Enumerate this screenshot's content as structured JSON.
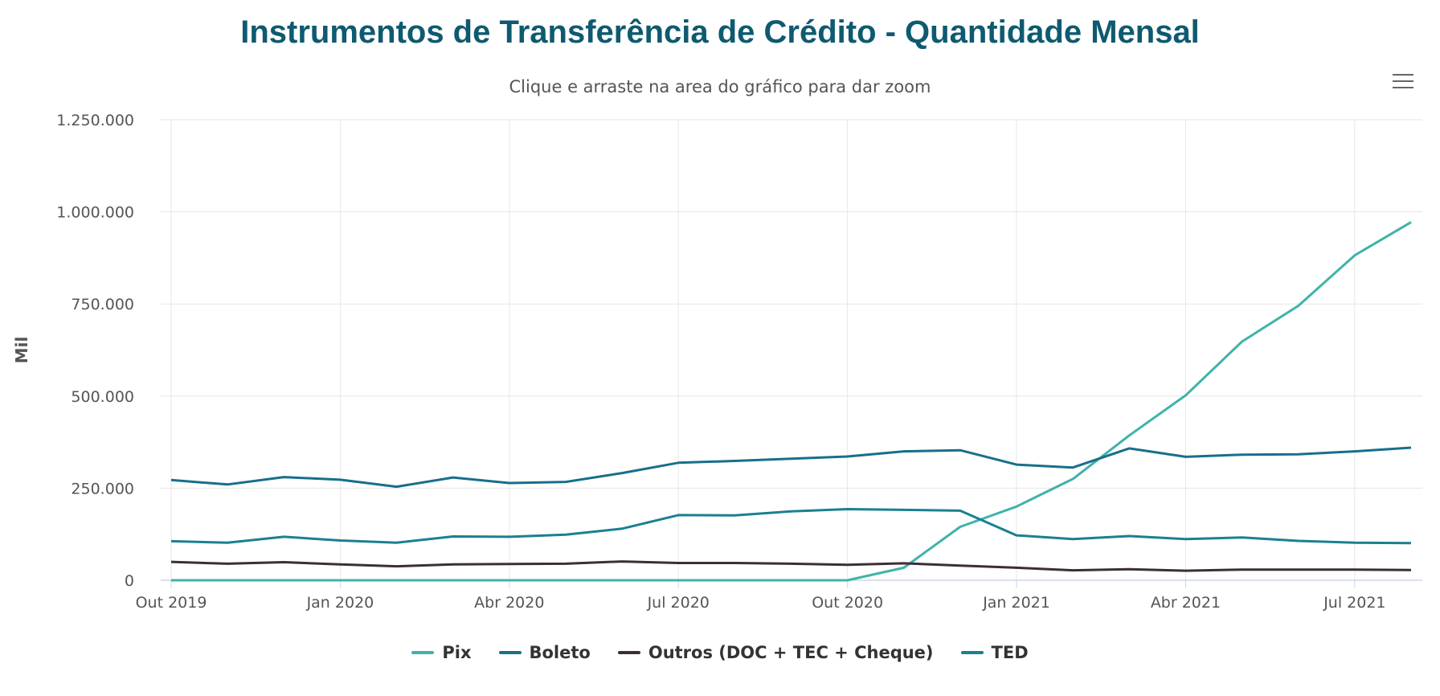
{
  "chart_data": {
    "type": "line",
    "title": "Instrumentos de Transferência de Crédito - Quantidade Mensal",
    "subtitle": "Clique e arraste na area do gráfico para dar zoom",
    "ylabel": "Mil",
    "ylim": [
      0,
      1250000
    ],
    "yticks": [
      "0",
      "250.000",
      "500.000",
      "750.000",
      "1.000.000",
      "1.250.000"
    ],
    "ytick_values": [
      0,
      250000,
      500000,
      750000,
      1000000,
      1250000
    ],
    "x": [
      "Out 2019",
      "Nov 2019",
      "Dez 2019",
      "Jan 2020",
      "Fev 2020",
      "Mar 2020",
      "Abr 2020",
      "Mai 2020",
      "Jun 2020",
      "Jul 2020",
      "Ago 2020",
      "Set 2020",
      "Out 2020",
      "Nov 2020",
      "Dez 2020",
      "Jan 2021",
      "Fev 2021",
      "Mar 2021",
      "Abr 2021",
      "Mai 2021",
      "Jun 2021",
      "Jul 2021",
      "Ago 2021"
    ],
    "xtick_labels": [
      {
        "index": 0,
        "label": "Out 2019"
      },
      {
        "index": 3,
        "label": "Jan 2020"
      },
      {
        "index": 6,
        "label": "Abr 2020"
      },
      {
        "index": 9,
        "label": "Jul 2020"
      },
      {
        "index": 12,
        "label": "Out 2020"
      },
      {
        "index": 15,
        "label": "Jan 2021"
      },
      {
        "index": 18,
        "label": "Abr 2021"
      },
      {
        "index": 21,
        "label": "Jul 2021"
      }
    ],
    "grid": true,
    "legend": "bottom",
    "series": [
      {
        "name": "Pix",
        "color": "#3fb3a9",
        "values": [
          0,
          0,
          0,
          0,
          0,
          0,
          0,
          0,
          0,
          0,
          0,
          0,
          0,
          34000,
          145000,
          200000,
          275000,
          393000,
          502000,
          648000,
          745000,
          882000,
          972000
        ]
      },
      {
        "name": "Boleto",
        "color": "#176f8c",
        "values": [
          272000,
          260000,
          280000,
          273000,
          254000,
          279000,
          264000,
          267000,
          291000,
          319000,
          324000,
          330000,
          336000,
          350000,
          353000,
          314000,
          306000,
          358000,
          335000,
          341000,
          342000,
          350000,
          360000
        ]
      },
      {
        "name": "Outros (DOC + TEC + Cheque)",
        "color": "#3b2f35",
        "values": [
          50000,
          45000,
          49000,
          43000,
          38000,
          43000,
          44000,
          45000,
          51000,
          47000,
          47000,
          45000,
          42000,
          46000,
          40000,
          34000,
          27000,
          30000,
          26000,
          29000,
          29000,
          29000,
          28000
        ]
      },
      {
        "name": "TED",
        "color": "#1a8091",
        "values": [
          106000,
          102000,
          118000,
          108000,
          102000,
          119000,
          118000,
          124000,
          140000,
          177000,
          176000,
          187000,
          193000,
          191000,
          189000,
          122000,
          112000,
          120000,
          112000,
          116000,
          107000,
          102000,
          101000
        ]
      }
    ]
  },
  "menu_icon": "hamburger-menu-icon"
}
